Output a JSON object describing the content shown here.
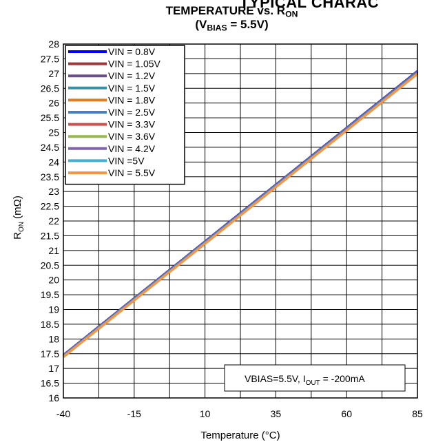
{
  "header": {
    "banner": "TYPICAL CHARAC",
    "title_line1_main": "TEMPERATURE vs. R",
    "title_line1_sub": "ON",
    "title_line2_pre": "(V",
    "title_line2_sub": "BIAS",
    "title_line2_post": " = 5.5V)"
  },
  "chart_data": {
    "type": "line",
    "title": "TEMPERATURE vs. RON (VBIAS = 5.5V)",
    "xlabel": "Temperature (°C)",
    "ylabel_main": "R",
    "ylabel_sub": "ON",
    "ylabel_unit": " (mΩ)",
    "xlim": [
      -40,
      85
    ],
    "ylim": [
      16,
      28
    ],
    "x_ticks": [
      -40,
      -15,
      10,
      35,
      60,
      85
    ],
    "x_tick_labels": [
      "-40",
      "-15",
      "10",
      "35",
      "60",
      "85"
    ],
    "y_ticks": [
      16,
      16.5,
      17,
      17.5,
      18,
      18.5,
      19,
      19.5,
      20,
      20.5,
      21,
      21.5,
      22,
      22.5,
      23,
      23.5,
      24,
      24.5,
      25,
      25.5,
      26,
      26.5,
      27,
      27.5,
      28
    ],
    "y_tick_labels": [
      "16",
      "16.5",
      "17",
      "17.5",
      "18",
      "18.5",
      "19",
      "19.5",
      "20",
      "20.5",
      "21",
      "21.5",
      "22",
      "22.5",
      "23",
      "23.5",
      "24",
      "24.5",
      "25",
      "25.5",
      "26",
      "26.5",
      "27",
      "27.5",
      "28"
    ],
    "x_grid_values": [
      -40,
      -27.5,
      -15,
      -2.5,
      10,
      22.5,
      35,
      47.5,
      60,
      72.5,
      85
    ],
    "grid": true,
    "legend_position": "top-left",
    "annotation": {
      "main": "VBIAS=5.5V, I",
      "sub": "OUT",
      "post": " = -200mA"
    },
    "series": [
      {
        "name": "VIN = 0.8V",
        "color": "#0000FF",
        "x": [
          -40,
          85
        ],
        "y": [
          17.45,
          27.08
        ]
      },
      {
        "name": "VIN = 1.05V",
        "color": "#A0353A",
        "x": [
          -40,
          85
        ],
        "y": [
          17.44,
          27.06
        ]
      },
      {
        "name": "VIN = 1.2V",
        "color": "#6B4E8C",
        "x": [
          -40,
          85
        ],
        "y": [
          17.44,
          27.07
        ]
      },
      {
        "name": "VIN = 1.5V",
        "color": "#3A8FA0",
        "x": [
          -40,
          85
        ],
        "y": [
          17.43,
          27.05
        ]
      },
      {
        "name": "VIN = 1.8V",
        "color": "#DA7F2E",
        "x": [
          -40,
          85
        ],
        "y": [
          17.42,
          27.03
        ]
      },
      {
        "name": "VIN = 2.5V",
        "color": "#4A7FC0",
        "x": [
          -40,
          85
        ],
        "y": [
          17.42,
          27.04
        ]
      },
      {
        "name": "VIN = 3.3V",
        "color": "#D0504C",
        "x": [
          -40,
          85
        ],
        "y": [
          17.41,
          27.02
        ]
      },
      {
        "name": "VIN = 3.6V",
        "color": "#98B94C",
        "x": [
          -40,
          85
        ],
        "y": [
          17.4,
          27.01
        ]
      },
      {
        "name": "VIN = 4.2V",
        "color": "#8064A8",
        "x": [
          -40,
          85
        ],
        "y": [
          17.41,
          27.02
        ]
      },
      {
        "name": "VIN =5V",
        "color": "#48AECB",
        "x": [
          -40,
          85
        ],
        "y": [
          17.4,
          27.0
        ]
      },
      {
        "name": "VIN = 5.5V",
        "color": "#F59645",
        "x": [
          -40,
          85
        ],
        "y": [
          17.39,
          26.99
        ]
      }
    ]
  }
}
